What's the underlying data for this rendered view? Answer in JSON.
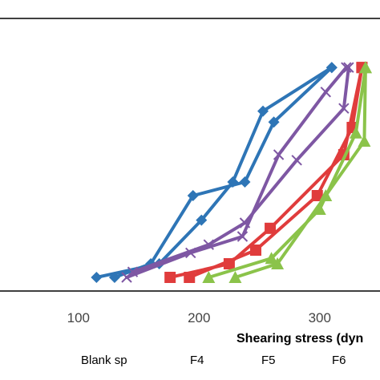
{
  "chart_data": {
    "type": "line",
    "xlabel": "Shearing stress (dyn",
    "ylabel": "",
    "xlim": [
      35,
      350
    ],
    "ylim": [
      0,
      100
    ],
    "x_ticks": [
      100,
      200,
      300
    ],
    "x_tick_labels": [
      "100",
      "200",
      "300"
    ],
    "grid": false,
    "legend_position": "bottom",
    "series": [
      {
        "name": "Blank sp",
        "color": "#2E75B6",
        "marker": "diamond",
        "up": {
          "x": [
            115,
            167,
            202,
            228,
            253,
            310
          ],
          "y": [
            5,
            10,
            26,
            40,
            66,
            82
          ]
        },
        "down": {
          "x": [
            130,
            160,
            195,
            238,
            262,
            310
          ],
          "y": [
            5,
            10,
            35,
            40,
            62,
            82
          ]
        }
      },
      {
        "name": "F4",
        "color": "#7E57A3",
        "marker": "x",
        "up": {
          "x": [
            140,
            193,
            236,
            266,
            305,
            322
          ],
          "y": [
            5,
            14,
            20,
            50,
            73,
            82
          ]
        },
        "down": {
          "x": [
            145,
            208,
            238,
            281,
            320,
            324
          ],
          "y": [
            7,
            17,
            25,
            48,
            67,
            82
          ]
        }
      },
      {
        "name": "F5",
        "color": "#E03C3C",
        "marker": "square",
        "up": {
          "x": [
            176,
            225,
            259,
            320,
            335
          ],
          "y": [
            5,
            10,
            23,
            50,
            82
          ]
        },
        "down": {
          "x": [
            192,
            247,
            298,
            327,
            335
          ],
          "y": [
            5,
            15,
            35,
            60,
            82
          ]
        }
      },
      {
        "name": "F6",
        "color": "#8BC34A",
        "marker": "triangle",
        "up": {
          "x": [
            208,
            260,
            300,
            330,
            338
          ],
          "y": [
            5,
            12,
            30,
            58,
            82
          ]
        },
        "down": {
          "x": [
            230,
            265,
            305,
            337,
            338
          ],
          "y": [
            5,
            10,
            35,
            55,
            82
          ]
        }
      }
    ]
  }
}
